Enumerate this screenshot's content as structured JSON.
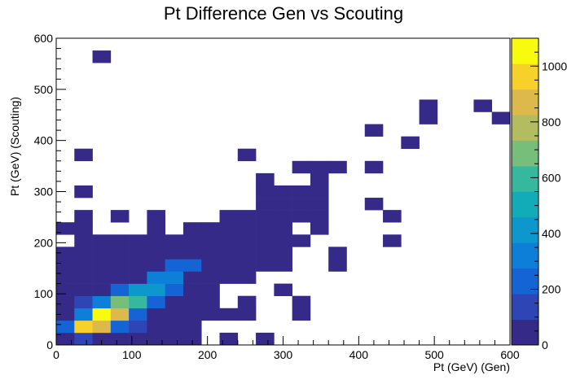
{
  "chart_data": {
    "type": "heatmap",
    "title": "Pt Difference Gen vs Scouting",
    "xlabel": "Pt (GeV) (Gen)",
    "ylabel": "Pt (GeV) (Scouting)",
    "xlim": [
      0,
      600
    ],
    "ylim": [
      0,
      600
    ],
    "x_ticks": [
      "0",
      "100",
      "200",
      "300",
      "400",
      "500",
      "600"
    ],
    "y_ticks": [
      "0",
      "100",
      "200",
      "300",
      "400",
      "500",
      "600"
    ],
    "z_ticks": [
      "0",
      "200",
      "400",
      "600",
      "800",
      "1000"
    ],
    "zlim": [
      0,
      1100
    ],
    "bin_width_x": 24,
    "bin_width_y": 24,
    "grid": false,
    "colormap": "parula",
    "cells": [
      {
        "x": 0,
        "y": 0,
        "v": 3
      },
      {
        "x": 24,
        "y": 0,
        "v": 120
      },
      {
        "x": 48,
        "y": 0,
        "v": 50
      },
      {
        "x": 72,
        "y": 0,
        "v": 20
      },
      {
        "x": 96,
        "y": 0,
        "v": 10
      },
      {
        "x": 120,
        "y": 0,
        "v": 5
      },
      {
        "x": 144,
        "y": 0,
        "v": 5
      },
      {
        "x": 168,
        "y": 0,
        "v": 5
      },
      {
        "x": 216,
        "y": 0,
        "v": 1
      },
      {
        "x": 264,
        "y": 0,
        "v": 1
      },
      {
        "x": 0,
        "y": 24,
        "v": 200
      },
      {
        "x": 24,
        "y": 24,
        "v": 950
      },
      {
        "x": 48,
        "y": 24,
        "v": 850
      },
      {
        "x": 72,
        "y": 24,
        "v": 250
      },
      {
        "x": 96,
        "y": 24,
        "v": 160
      },
      {
        "x": 120,
        "y": 24,
        "v": 20
      },
      {
        "x": 144,
        "y": 24,
        "v": 20
      },
      {
        "x": 168,
        "y": 24,
        "v": 10
      },
      {
        "x": 0,
        "y": 48,
        "v": 10
      },
      {
        "x": 24,
        "y": 48,
        "v": 300
      },
      {
        "x": 48,
        "y": 48,
        "v": 1100
      },
      {
        "x": 72,
        "y": 48,
        "v": 900
      },
      {
        "x": 96,
        "y": 48,
        "v": 250
      },
      {
        "x": 120,
        "y": 48,
        "v": 20
      },
      {
        "x": 144,
        "y": 48,
        "v": 20
      },
      {
        "x": 168,
        "y": 48,
        "v": 20
      },
      {
        "x": 192,
        "y": 48,
        "v": 10
      },
      {
        "x": 216,
        "y": 48,
        "v": 10
      },
      {
        "x": 240,
        "y": 48,
        "v": 3
      },
      {
        "x": 312,
        "y": 48,
        "v": 1
      },
      {
        "x": 0,
        "y": 72,
        "v": 10
      },
      {
        "x": 24,
        "y": 72,
        "v": 160
      },
      {
        "x": 48,
        "y": 72,
        "v": 300
      },
      {
        "x": 72,
        "y": 72,
        "v": 700
      },
      {
        "x": 96,
        "y": 72,
        "v": 550
      },
      {
        "x": 120,
        "y": 72,
        "v": 200
      },
      {
        "x": 144,
        "y": 72,
        "v": 30
      },
      {
        "x": 168,
        "y": 72,
        "v": 20
      },
      {
        "x": 192,
        "y": 72,
        "v": 10
      },
      {
        "x": 240,
        "y": 72,
        "v": 3
      },
      {
        "x": 312,
        "y": 72,
        "v": 1
      },
      {
        "x": 0,
        "y": 96,
        "v": 20
      },
      {
        "x": 24,
        "y": 96,
        "v": 20
      },
      {
        "x": 48,
        "y": 96,
        "v": 20
      },
      {
        "x": 72,
        "y": 96,
        "v": 250
      },
      {
        "x": 96,
        "y": 96,
        "v": 450
      },
      {
        "x": 120,
        "y": 96,
        "v": 400
      },
      {
        "x": 144,
        "y": 96,
        "v": 200
      },
      {
        "x": 168,
        "y": 96,
        "v": 20
      },
      {
        "x": 192,
        "y": 96,
        "v": 10
      },
      {
        "x": 288,
        "y": 96,
        "v": 2
      },
      {
        "x": 0,
        "y": 120,
        "v": 20
      },
      {
        "x": 24,
        "y": 120,
        "v": 20
      },
      {
        "x": 48,
        "y": 120,
        "v": 20
      },
      {
        "x": 72,
        "y": 120,
        "v": 20
      },
      {
        "x": 96,
        "y": 120,
        "v": 20
      },
      {
        "x": 120,
        "y": 120,
        "v": 300
      },
      {
        "x": 144,
        "y": 120,
        "v": 300
      },
      {
        "x": 168,
        "y": 120,
        "v": 20
      },
      {
        "x": 192,
        "y": 120,
        "v": 20
      },
      {
        "x": 216,
        "y": 120,
        "v": 10
      },
      {
        "x": 240,
        "y": 120,
        "v": 10
      },
      {
        "x": 0,
        "y": 144,
        "v": 20
      },
      {
        "x": 24,
        "y": 144,
        "v": 20
      },
      {
        "x": 48,
        "y": 144,
        "v": 20
      },
      {
        "x": 72,
        "y": 144,
        "v": 20
      },
      {
        "x": 96,
        "y": 144,
        "v": 20
      },
      {
        "x": 120,
        "y": 144,
        "v": 20
      },
      {
        "x": 144,
        "y": 144,
        "v": 200
      },
      {
        "x": 168,
        "y": 144,
        "v": 200
      },
      {
        "x": 192,
        "y": 144,
        "v": 20
      },
      {
        "x": 216,
        "y": 144,
        "v": 10
      },
      {
        "x": 240,
        "y": 144,
        "v": 10
      },
      {
        "x": 264,
        "y": 144,
        "v": 5
      },
      {
        "x": 288,
        "y": 144,
        "v": 5
      },
      {
        "x": 360,
        "y": 144,
        "v": 2
      },
      {
        "x": 0,
        "y": 168,
        "v": 20
      },
      {
        "x": 24,
        "y": 168,
        "v": 20
      },
      {
        "x": 48,
        "y": 168,
        "v": 20
      },
      {
        "x": 72,
        "y": 168,
        "v": 20
      },
      {
        "x": 96,
        "y": 168,
        "v": 20
      },
      {
        "x": 120,
        "y": 168,
        "v": 20
      },
      {
        "x": 144,
        "y": 168,
        "v": 20
      },
      {
        "x": 168,
        "y": 168,
        "v": 20
      },
      {
        "x": 192,
        "y": 168,
        "v": 20
      },
      {
        "x": 216,
        "y": 168,
        "v": 10
      },
      {
        "x": 240,
        "y": 168,
        "v": 10
      },
      {
        "x": 264,
        "y": 168,
        "v": 5
      },
      {
        "x": 288,
        "y": 168,
        "v": 5
      },
      {
        "x": 360,
        "y": 168,
        "v": 2
      },
      {
        "x": 24,
        "y": 192,
        "v": 20
      },
      {
        "x": 48,
        "y": 192,
        "v": 20
      },
      {
        "x": 72,
        "y": 192,
        "v": 20
      },
      {
        "x": 96,
        "y": 192,
        "v": 20
      },
      {
        "x": 120,
        "y": 192,
        "v": 20
      },
      {
        "x": 144,
        "y": 192,
        "v": 20
      },
      {
        "x": 168,
        "y": 192,
        "v": 20
      },
      {
        "x": 192,
        "y": 192,
        "v": 20
      },
      {
        "x": 216,
        "y": 192,
        "v": 10
      },
      {
        "x": 240,
        "y": 192,
        "v": 10
      },
      {
        "x": 264,
        "y": 192,
        "v": 5
      },
      {
        "x": 288,
        "y": 192,
        "v": 5
      },
      {
        "x": 312,
        "y": 192,
        "v": 2
      },
      {
        "x": 432,
        "y": 192,
        "v": 1
      },
      {
        "x": 0,
        "y": 216,
        "v": 10
      },
      {
        "x": 24,
        "y": 216,
        "v": 10
      },
      {
        "x": 120,
        "y": 216,
        "v": 10
      },
      {
        "x": 168,
        "y": 216,
        "v": 10
      },
      {
        "x": 192,
        "y": 216,
        "v": 10
      },
      {
        "x": 216,
        "y": 216,
        "v": 10
      },
      {
        "x": 240,
        "y": 216,
        "v": 10
      },
      {
        "x": 264,
        "y": 216,
        "v": 5
      },
      {
        "x": 288,
        "y": 216,
        "v": 5
      },
      {
        "x": 336,
        "y": 216,
        "v": 3
      },
      {
        "x": 24,
        "y": 240,
        "v": 10
      },
      {
        "x": 72,
        "y": 240,
        "v": 5
      },
      {
        "x": 120,
        "y": 240,
        "v": 5
      },
      {
        "x": 216,
        "y": 240,
        "v": 5
      },
      {
        "x": 240,
        "y": 240,
        "v": 5
      },
      {
        "x": 264,
        "y": 240,
        "v": 5
      },
      {
        "x": 288,
        "y": 240,
        "v": 5
      },
      {
        "x": 312,
        "y": 240,
        "v": 5
      },
      {
        "x": 336,
        "y": 240,
        "v": 3
      },
      {
        "x": 432,
        "y": 240,
        "v": 1
      },
      {
        "x": 264,
        "y": 264,
        "v": 3
      },
      {
        "x": 288,
        "y": 264,
        "v": 3
      },
      {
        "x": 312,
        "y": 264,
        "v": 3
      },
      {
        "x": 336,
        "y": 264,
        "v": 3
      },
      {
        "x": 408,
        "y": 264,
        "v": 1
      },
      {
        "x": 24,
        "y": 288,
        "v": 2
      },
      {
        "x": 264,
        "y": 288,
        "v": 3
      },
      {
        "x": 288,
        "y": 288,
        "v": 3
      },
      {
        "x": 312,
        "y": 288,
        "v": 3
      },
      {
        "x": 336,
        "y": 288,
        "v": 3
      },
      {
        "x": 264,
        "y": 312,
        "v": 3
      },
      {
        "x": 336,
        "y": 312,
        "v": 3
      },
      {
        "x": 312,
        "y": 336,
        "v": 2
      },
      {
        "x": 336,
        "y": 336,
        "v": 2
      },
      {
        "x": 360,
        "y": 336,
        "v": 2
      },
      {
        "x": 408,
        "y": 336,
        "v": 1
      },
      {
        "x": 24,
        "y": 360,
        "v": 1
      },
      {
        "x": 240,
        "y": 360,
        "v": 1
      },
      {
        "x": 456,
        "y": 384,
        "v": 1
      },
      {
        "x": 408,
        "y": 408,
        "v": 1
      },
      {
        "x": 480,
        "y": 432,
        "v": 1
      },
      {
        "x": 576,
        "y": 432,
        "v": 1
      },
      {
        "x": 480,
        "y": 456,
        "v": 1
      },
      {
        "x": 552,
        "y": 456,
        "v": 1
      },
      {
        "x": 48,
        "y": 552,
        "v": 1
      }
    ]
  }
}
